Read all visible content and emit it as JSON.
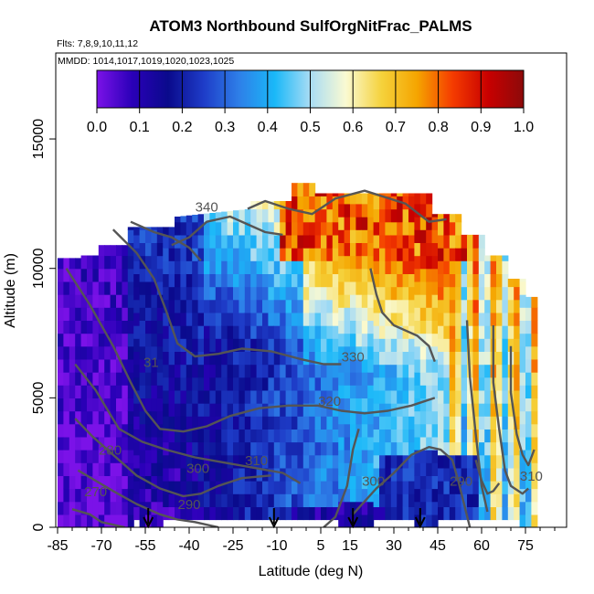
{
  "chart_data": {
    "type": "heatmap",
    "title": "ATOM3 Northbound SulfOrgNitFrac_PALMS",
    "notes": {
      "flights": "Flts: 7,8,9,10,11,12",
      "dates": "MMDD: 1014,1017,1019,1020,1023,1025"
    },
    "xlabel": "Latitude (deg N)",
    "ylabel": "Altitude (m)",
    "xlim": [
      -85,
      85
    ],
    "ylim": [
      0,
      17500
    ],
    "x_ticks": [
      -85,
      -70,
      -55,
      -40,
      -25,
      -10,
      5,
      15,
      30,
      45,
      60,
      75
    ],
    "x_tick_labels": [
      "-85",
      "-70",
      "-55",
      "-40",
      "-25",
      "-10",
      "5",
      "15",
      "30",
      "45",
      "60",
      "75"
    ],
    "y_ticks": [
      0,
      5000,
      10000,
      15000
    ],
    "y_tick_labels": [
      "0",
      "5000",
      "10000",
      "15000"
    ],
    "colorbar": {
      "range": [
        0.0,
        1.0
      ],
      "ticks": [
        0.0,
        0.1,
        0.2,
        0.3,
        0.4,
        0.5,
        0.6,
        0.7,
        0.8,
        0.9,
        1.0
      ],
      "tick_labels": [
        "0.0",
        "0.1",
        "0.2",
        "0.3",
        "0.4",
        "0.5",
        "0.6",
        "0.7",
        "0.8",
        "0.9",
        "1.0"
      ],
      "colors": [
        "#7b12e8",
        "#2a00b8",
        "#0a0a8c",
        "#1e3cc8",
        "#2e7fe8",
        "#1ab8f8",
        "#a8dcf4",
        "#fafad2",
        "#f5d23c",
        "#f5a500",
        "#f53c00",
        "#c80000",
        "#8c0a0a"
      ]
    },
    "profile_markers_lat": [
      -54,
      -11,
      16,
      39
    ],
    "contour_labels": [
      {
        "label": "340",
        "lat": -34,
        "alt": 12200
      },
      {
        "label": "330",
        "lat": 16,
        "alt": 6400
      },
      {
        "label": "320",
        "lat": 8,
        "alt": 4700
      },
      {
        "label": "310",
        "lat": -17,
        "alt": 2400
      },
      {
        "label": "300",
        "lat": -37,
        "alt": 2100
      },
      {
        "label": "300",
        "lat": 23,
        "alt": 1600
      },
      {
        "label": "290",
        "lat": -40,
        "alt": 700
      },
      {
        "label": "290",
        "lat": 53,
        "alt": 1600
      },
      {
        "label": "280",
        "lat": -67,
        "alt": 2800
      },
      {
        "label": "270",
        "lat": -72,
        "alt": 1200
      },
      {
        "label": "310",
        "lat": 77,
        "alt": 1800
      },
      {
        "label": "31",
        "lat": -53,
        "alt": 6200
      }
    ]
  }
}
